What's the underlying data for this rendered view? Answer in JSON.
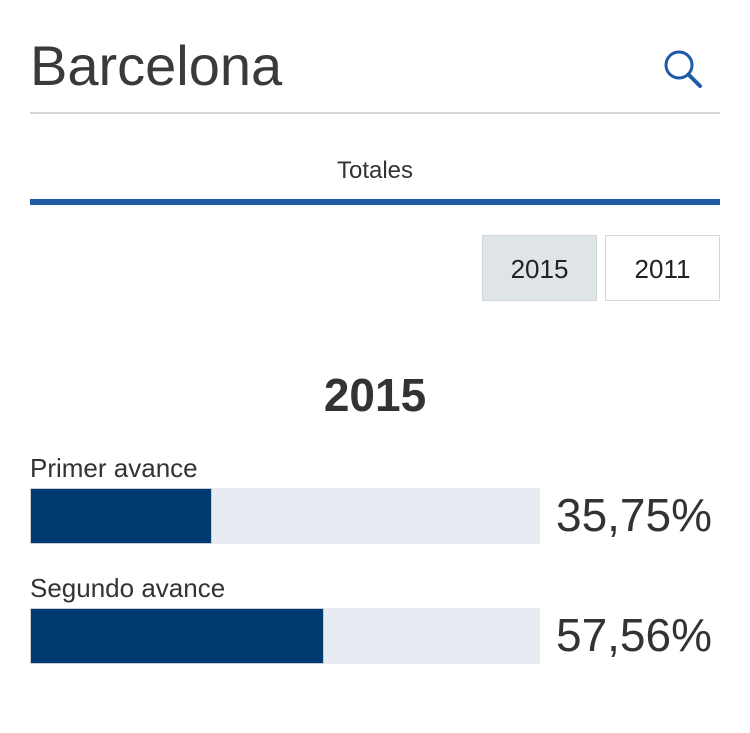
{
  "header": {
    "title": "Barcelona",
    "search_icon": "search-icon"
  },
  "tabs": [
    {
      "label": "Totales",
      "active": true
    }
  ],
  "year_toggle": {
    "options": [
      "2015",
      "2011"
    ],
    "selected": "2015"
  },
  "section": {
    "year_title": "2015"
  },
  "results": [
    {
      "label": "Primer avance",
      "value_text": "35,75%",
      "value": 35.75
    },
    {
      "label": "Segundo avance",
      "value_text": "57,56%",
      "value": 57.56
    }
  ],
  "colors": {
    "accent": "#1f5aa6",
    "bar_fill": "#003a70",
    "bar_track": "#e7ebf2",
    "active_toggle": "#dfe5e7"
  }
}
